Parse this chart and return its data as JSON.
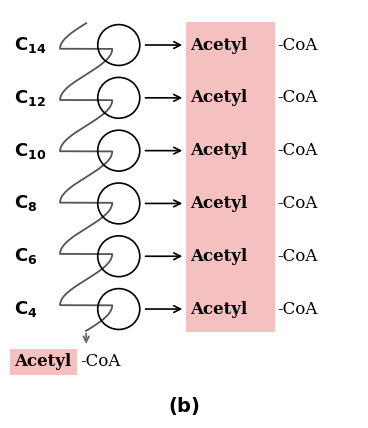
{
  "title": "(b)",
  "background_color": "#ffffff",
  "pink_color": "#f5c0c0",
  "carbon_numbers": [
    14,
    12,
    10,
    8,
    6,
    4
  ],
  "n_rows": 6,
  "fig_width": 3.68,
  "fig_height": 4.28,
  "dpi": 100
}
